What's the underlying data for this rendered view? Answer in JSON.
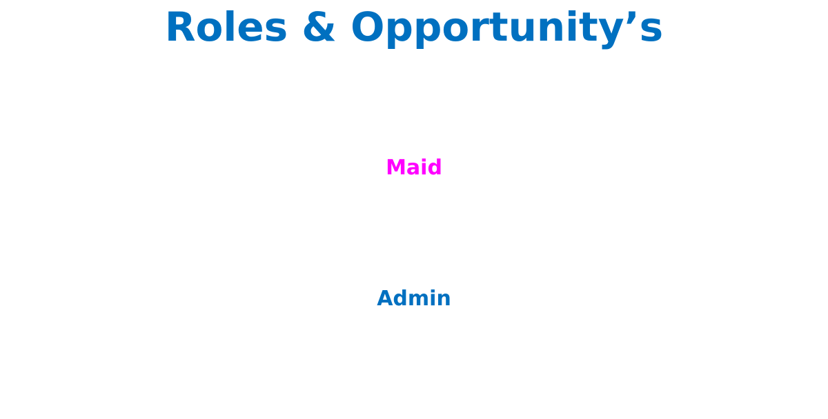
{
  "slide": {
    "title": "Roles & Opportunity’s",
    "roles": [
      {
        "label": "Maid"
      },
      {
        "label": "Admin"
      }
    ]
  },
  "colors": {
    "background": "#ffffff",
    "title": "#0070c0",
    "maid": "#ff00ff",
    "admin": "#0070c0"
  }
}
